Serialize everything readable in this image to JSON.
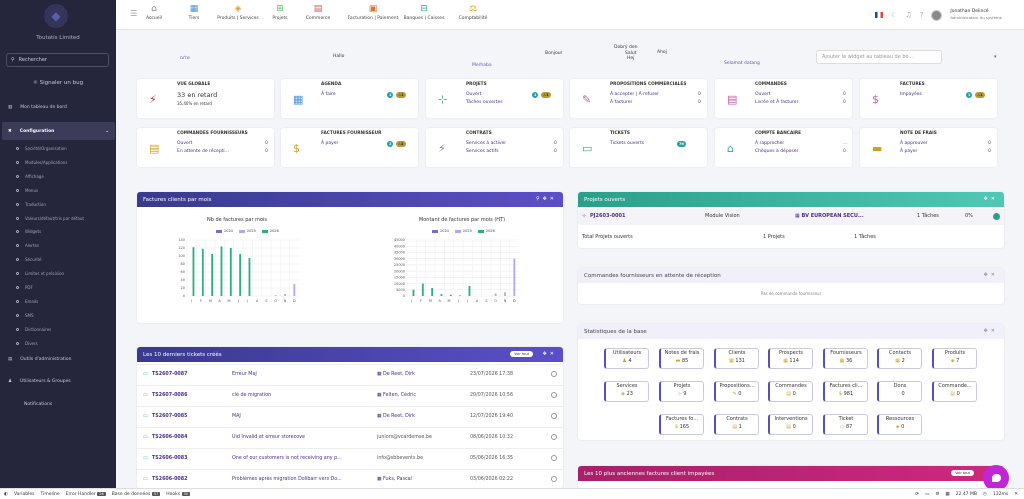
{
  "sidebar": {
    "company": "Toutatis Limited",
    "search_placeholder": "Rechercher",
    "bug": "Signaler un bug",
    "dashboard": "Mon tableau de bord",
    "config": "Configuration",
    "subitems": [
      "Société/Organisation",
      "Modules/Applications",
      "Affichage",
      "Menus",
      "Traduction",
      "Valeurs/défaut/tris par défaut",
      "Widgets",
      "Alertes",
      "Sécurité",
      "Limites et précision",
      "PDF",
      "Emails",
      "SMS",
      "Dictionnaires",
      "Divers"
    ],
    "admin_tools": "Outils d'administration",
    "users_groups": "Utilisateurs & Groupes",
    "notifications": "Notifications"
  },
  "topmenu": [
    {
      "label": "Accueil",
      "icon": "⌂",
      "color": "#888"
    },
    {
      "label": "Tiers",
      "icon": "▦",
      "color": "#4a90d9"
    },
    {
      "label": "Produits | Services",
      "icon": "◈",
      "color": "#e0a030"
    },
    {
      "label": "Projets",
      "icon": "⊞",
      "color": "#5cb85c"
    },
    {
      "label": "Commerce",
      "icon": "▤",
      "color": "#d9534f"
    },
    {
      "label": "Facturation | Paiement",
      "icon": "▣",
      "color": "#e07030"
    },
    {
      "label": "Banques | Caisses",
      "icon": "⊟",
      "color": "#3aa39a"
    },
    {
      "label": "Comptabilité",
      "icon": "⚖",
      "color": "#d0a020"
    }
  ],
  "user": {
    "name": "Jonathan Delincé",
    "role": "Administrateur du système"
  },
  "greetings": [
    {
      "text": "שלום",
      "x": 180,
      "y": 56,
      "c": "#6b55b5"
    },
    {
      "text": "Hallo",
      "x": 333,
      "y": 54,
      "c": "#333"
    },
    {
      "text": "Merhaba",
      "x": 472,
      "y": 63,
      "c": "#6b55b5"
    },
    {
      "text": "Bonjour",
      "x": 545,
      "y": 51,
      "c": "#333"
    },
    {
      "text": "Dobrý den",
      "x": 614,
      "y": 45,
      "c": "#333"
    },
    {
      "text": "Salut",
      "x": 625,
      "y": 51,
      "c": "#333"
    },
    {
      "text": "Hej",
      "x": 627,
      "y": 56,
      "c": "#333"
    },
    {
      "text": "Selamat datang",
      "x": 724,
      "y": 61,
      "c": "#6b55b5"
    },
    {
      "text": "Ahoj",
      "x": 657,
      "y": 50,
      "c": "#333"
    }
  ],
  "widget_search_placeholder": "Ajouter le widget au tableau de bo...",
  "cards_row1": [
    {
      "title": "VUE GLOBALE",
      "big": "33 en retard",
      "small": "35,40% en retard",
      "icon": "⚡",
      "ic": "#c0262c"
    },
    {
      "title": "AGENDA",
      "l1": "À faire",
      "icon": "▦",
      "ic": "#4a90d9",
      "b1": "1",
      "b2": "⚠1"
    },
    {
      "title": "PROJETS",
      "l1": "Ouvert",
      "l2": "Tâches ouvertes",
      "icon": "⊹",
      "ic": "#3aa39a",
      "b1": "1",
      "b2": "⚠1"
    },
    {
      "title": "PROPOSITIONS COMMERCIALES",
      "l1": "À accepter | À refuser",
      "l2": "À facturer",
      "n1": "0",
      "n2": "0",
      "icon": "✎",
      "ic": "#c05fa0"
    },
    {
      "title": "COMMANDES",
      "l1": "Ouvert",
      "l2": "Livrée et À facturer",
      "n1": "0",
      "n2": "0",
      "icon": "▤",
      "ic": "#c05fa0"
    },
    {
      "title": "FACTURES",
      "l1": "Impayées",
      "icon": "$",
      "ic": "#c05fa0",
      "b1": "1",
      "b2": "⚠1"
    }
  ],
  "cards_row2": [
    {
      "title": "COMMANDES FOURNISSEURS",
      "l1": "Ouvert",
      "l2": "En attente de récepti...",
      "n1": "0",
      "n2": "0",
      "icon": "▤",
      "ic": "#d0a020"
    },
    {
      "title": "FACTURES FOURNISSEUR",
      "l1": "À payer",
      "icon": "$",
      "ic": "#d0a020",
      "b1": "2",
      "b2": "⚠2"
    },
    {
      "title": "CONTRATS",
      "l1": "Services à activer",
      "l2": "Services actifs",
      "n1": "0",
      "n2": "0",
      "icon": "⚡",
      "ic": "#8a6fcf"
    },
    {
      "title": "TICKETS",
      "l1": "Tickets ouverts",
      "icon": "▭",
      "ic": "#3aa39a",
      "b1": "76"
    },
    {
      "title": "COMPTE BANCAIRE",
      "l1": "À rapprocher",
      "l2": "Chèques à déposer",
      "n1": "...",
      "n2": "0",
      "icon": "⌂",
      "ic": "#3aa39a"
    },
    {
      "title": "NOTE DE FRAIS",
      "l1": "À approuver",
      "l2": "À payer",
      "n1": "0",
      "n2": "0",
      "icon": "▬",
      "ic": "#d0a020"
    }
  ],
  "invoice_panel": {
    "title": "Factures clients par mois",
    "chart1_title": "Nb de factures par mois",
    "chart2_title": "Montant de factures par mois (HT)",
    "legend": [
      {
        "name": "2024",
        "c": "#7e68d4"
      },
      {
        "name": "2025",
        "c": "#b5a7e8"
      },
      {
        "name": "2026",
        "c": "#2dad80"
      }
    ]
  },
  "chart_data": [
    {
      "type": "bar",
      "title": "Nb de factures par mois",
      "categories": [
        "J",
        "F",
        "M",
        "A",
        "M",
        "J",
        "J",
        "A",
        "S",
        "O",
        "N",
        "D"
      ],
      "ylim": [
        0,
        140
      ],
      "yticks": [
        "140",
        "120",
        "100",
        "80",
        "60",
        "40",
        "20",
        "0"
      ],
      "series": [
        {
          "name": "2024",
          "values": [
            0,
            0,
            0,
            0,
            0,
            0,
            0,
            0,
            0,
            0,
            0,
            0
          ]
        },
        {
          "name": "2025",
          "values": [
            0,
            0,
            0,
            0,
            0,
            0,
            0,
            0,
            0,
            2,
            5,
            30
          ]
        },
        {
          "name": "2026",
          "values": [
            122,
            118,
            105,
            124,
            120,
            105,
            95,
            0,
            0,
            0,
            0,
            0
          ]
        }
      ]
    },
    {
      "type": "bar",
      "title": "Montant de factures par mois (HT)",
      "categories": [
        "J",
        "F",
        "M",
        "A",
        "M",
        "J",
        "J",
        "A",
        "S",
        "O",
        "N",
        "D"
      ],
      "ylim": [
        0,
        45000
      ],
      "yticks": [
        "45000",
        "40000",
        "35000",
        "30000",
        "25000",
        "20000",
        "15000",
        "10000",
        "5000",
        "0"
      ],
      "series": [
        {
          "name": "2024",
          "values": [
            0,
            0,
            0,
            0,
            0,
            0,
            0,
            0,
            0,
            0,
            0,
            0
          ]
        },
        {
          "name": "2025",
          "values": [
            0,
            0,
            0,
            0,
            0,
            0,
            0,
            0,
            0,
            2000,
            3000,
            30000
          ]
        },
        {
          "name": "2026",
          "values": [
            5000,
            10000,
            6500,
            1500,
            1000,
            500,
            8000,
            0,
            0,
            0,
            0,
            0
          ]
        }
      ]
    }
  ],
  "projects_panel": {
    "title": "Projets ouverts",
    "ref": "PJ2603-0001",
    "module": "Module Vision",
    "client": "BV EUROPEAN SECU...",
    "tasks": "1 Tâches",
    "pct": "0%",
    "total_label": "Total Projets ouverts",
    "total_projects": "1 Projets",
    "total_tasks": "1 Tâches"
  },
  "supplier_panel": {
    "title": "Commandes fournisseurs en attente de réception",
    "empty": "Pas de commande fournisseur"
  },
  "stats_panel": {
    "title": "Statistiques de la base",
    "items": [
      {
        "l": "Utilisateurs",
        "v": "4",
        "i": "♟"
      },
      {
        "l": "Notes de frais",
        "v": "85",
        "i": "▬"
      },
      {
        "l": "Clients",
        "v": "131",
        "i": "▦"
      },
      {
        "l": "Prospects",
        "v": "114",
        "i": "▦"
      },
      {
        "l": "Fournisseurs",
        "v": "36",
        "i": "▦"
      },
      {
        "l": "Contacts",
        "v": "2",
        "i": "▦"
      },
      {
        "l": "Produits",
        "v": "7",
        "i": "◈"
      },
      {
        "l": "Services",
        "v": "23",
        "i": "◈"
      },
      {
        "l": "Projets",
        "v": "9",
        "i": "⊹"
      },
      {
        "l": "Propositions...",
        "v": "0",
        "i": "✎"
      },
      {
        "l": "Commandes",
        "v": "0",
        "i": "▤"
      },
      {
        "l": "Factures cli...",
        "v": "981",
        "i": "$"
      },
      {
        "l": "Dons",
        "v": "0",
        "i": "♡"
      },
      {
        "l": "Commande...",
        "v": "0",
        "i": "▤"
      },
      {
        "l": "Factures fo...",
        "v": "165",
        "i": "$"
      },
      {
        "l": "Contrats",
        "v": "1",
        "i": "▤"
      },
      {
        "l": "Interventions",
        "v": "0",
        "i": "▤"
      },
      {
        "l": "Ticket",
        "v": "87",
        "i": "▭"
      },
      {
        "l": "Ressources",
        "v": "0",
        "i": "◈"
      }
    ]
  },
  "tickets_panel": {
    "title": "Les 10 derniers tickets créés",
    "button": "Voir tout",
    "rows": [
      {
        "ref": "TS2607-0087",
        "subj": "Erreur MaJ",
        "who": "De Reet, Dirk",
        "icon": true,
        "date": "23/07/2026 17:38"
      },
      {
        "ref": "TS2607-0086",
        "subj": "clé de migration",
        "who": "Felten, Cédric",
        "icon": true,
        "date": "20/07/2026 10:56"
      },
      {
        "ref": "TS2607-0085",
        "subj": "MAJ",
        "who": "De Reet, Dirk",
        "icon": true,
        "date": "12/07/2026 19:40"
      },
      {
        "ref": "TS2606-0084",
        "subj": "Uid Invalid et erreur storecove",
        "who": "juniors@vcardemse.be",
        "icon": false,
        "date": "08/06/2026 10:32"
      },
      {
        "ref": "TS2606-0083",
        "subj": "One of our customers is not receiving any p...",
        "who": "info@sbbevents.be",
        "icon": false,
        "date": "05/06/2026 16:35"
      },
      {
        "ref": "TS2606-0082",
        "subj": "Problèmes après migration Dolibarr vers Do...",
        "who": "Fuks, Pascal",
        "icon": true,
        "date": "03/06/2026 02:22"
      }
    ]
  },
  "oldest_invoices_panel": {
    "title": "Les 10 plus anciennes factures client impayées",
    "button": "Voir tout"
  },
  "bottombar": {
    "variables": "Variables",
    "timeline": "Timeline",
    "errors": "Error Handler",
    "errors_n": "26",
    "db": "Base de données",
    "db_n": "57",
    "hooks": "Hooks",
    "hooks_n": "30",
    "memory": "22.47 MB",
    "time": "132ms"
  }
}
